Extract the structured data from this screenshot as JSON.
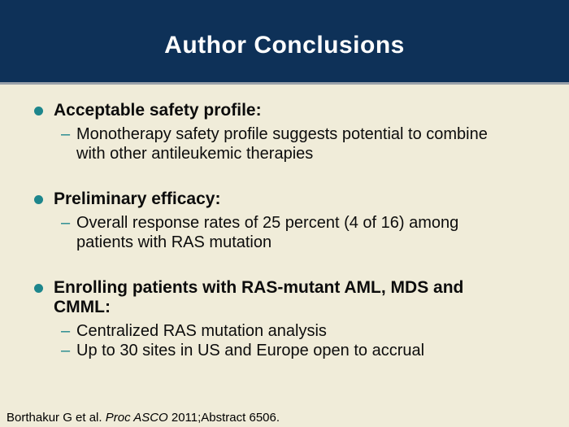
{
  "slide": {
    "title": "Author Conclusions",
    "dash_glyph": "–",
    "colors": {
      "header_navy": "#0e3158",
      "header_underline": "#99a1aa",
      "body_cream": "#f0ecd9",
      "accent_teal": "#1d868c",
      "text_black": "#0c0c0c"
    },
    "sections": [
      {
        "heading_lines": [
          "Acceptable safety profile:"
        ],
        "subitems": [
          {
            "lines": [
              "Monotherapy safety profile suggests potential to combine",
              "with other antileukemic therapies"
            ]
          }
        ]
      },
      {
        "heading_lines": [
          "Preliminary efficacy:"
        ],
        "subitems": [
          {
            "lines": [
              "Overall response rates of 25 percent (4 of 16) among",
              "patients with RAS mutation"
            ]
          }
        ]
      },
      {
        "heading_lines": [
          "Enrolling patients with RAS-mutant AML, MDS and",
          "CMML:"
        ],
        "subitems": [
          {
            "lines": [
              "Centralized RAS mutation analysis"
            ]
          },
          {
            "lines": [
              "Up to 30 sites in US and Europe open to accrual"
            ]
          }
        ]
      }
    ],
    "footer": {
      "citation_prefix": "Borthakur G et al. ",
      "citation_italic": "Proc ASCO",
      "citation_suffix": " 2011;Abstract 6506."
    }
  }
}
